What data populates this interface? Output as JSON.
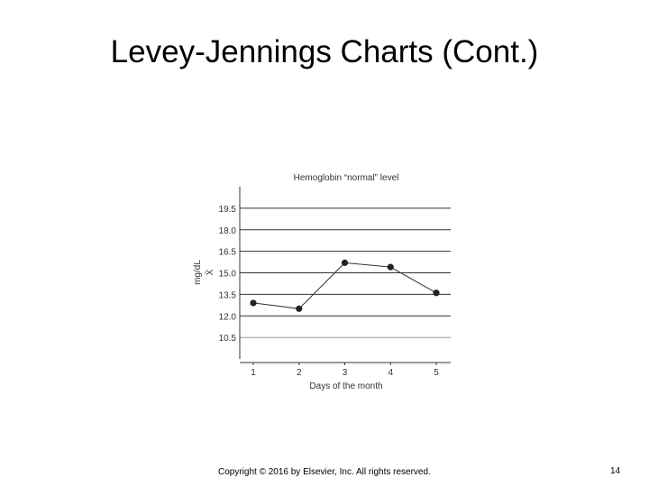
{
  "slide": {
    "title": "Levey-Jennings Charts (Cont.)",
    "footer": "Copyright © 2016 by Elsevier, Inc. All rights reserved.",
    "page_number": "14"
  },
  "chart_data": {
    "type": "line",
    "title": "Hemoglobin “normal” level",
    "xlabel": "Days of the month",
    "ylabel": "mg/dL",
    "mean_marker": "X̄",
    "x": [
      1,
      2,
      3,
      4,
      5
    ],
    "yticks": [
      19.5,
      18.0,
      16.5,
      15.0,
      13.5,
      12.0,
      10.5
    ],
    "ylim": [
      9.0,
      21.0
    ],
    "grid": true,
    "series": [
      {
        "values": [
          12.9,
          12.5,
          15.7,
          15.4,
          13.6
        ]
      }
    ],
    "colors": {
      "line": "#333333",
      "point": "#222222",
      "grid": "#333333"
    }
  }
}
